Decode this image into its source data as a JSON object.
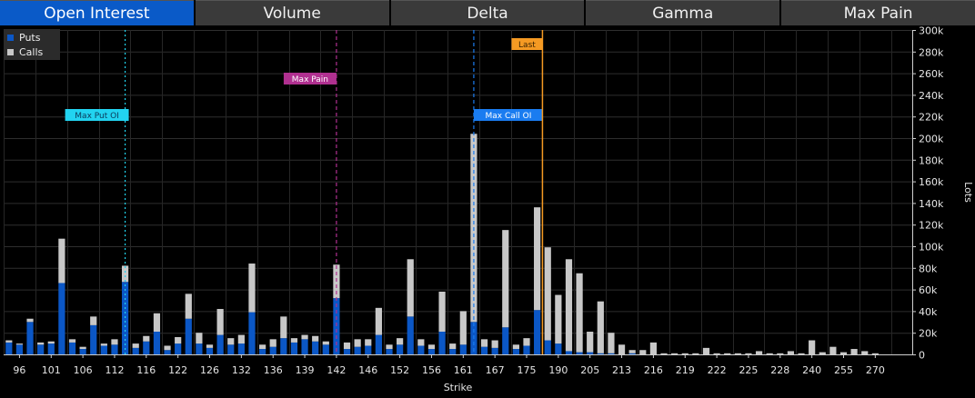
{
  "tabs": [
    {
      "label": "Open Interest",
      "active": true
    },
    {
      "label": "Volume",
      "active": false
    },
    {
      "label": "Delta",
      "active": false
    },
    {
      "label": "Gamma",
      "active": false
    },
    {
      "label": "Max Pain",
      "active": false
    }
  ],
  "legend": [
    {
      "label": "Puts",
      "color": "#0b57c6"
    },
    {
      "label": "Calls",
      "color": "#c8c8c8"
    }
  ],
  "chart_data": {
    "type": "bar",
    "stacked": true,
    "xlabel": "Strike",
    "ylabel": "Lots",
    "ylim": [
      0,
      300000
    ],
    "yticks": [
      "0",
      "20k",
      "40k",
      "60k",
      "80k",
      "100k",
      "120k",
      "140k",
      "160k",
      "180k",
      "200k",
      "220k",
      "240k",
      "260k",
      "280k",
      "300k"
    ],
    "xtick_labels": [
      "96",
      "101",
      "106",
      "112",
      "116",
      "122",
      "126",
      "132",
      "136",
      "139",
      "142",
      "146",
      "152",
      "156",
      "161",
      "167",
      "175",
      "190",
      "205",
      "213",
      "216",
      "219",
      "222",
      "225",
      "228",
      "240",
      "255",
      "270"
    ],
    "grid": true,
    "series": [
      {
        "name": "Puts",
        "color": "#0b57c6",
        "values": [
          11000,
          9000,
          30000,
          9000,
          10000,
          66000,
          11000,
          5000,
          27000,
          8000,
          9000,
          67000,
          6000,
          12000,
          21000,
          4000,
          10000,
          33000,
          10000,
          6000,
          18000,
          9000,
          10000,
          39000,
          5000,
          7000,
          15000,
          11000,
          14000,
          12000,
          9000,
          52000,
          5000,
          7000,
          8000,
          18000,
          5000,
          9000,
          35000,
          8000,
          5000,
          21000,
          5000,
          9000,
          30000,
          7000,
          6000,
          25000,
          5000,
          8000,
          41000,
          13000,
          10000,
          3000,
          2000,
          2000,
          1000,
          1000,
          0,
          1000,
          0,
          0,
          0,
          0,
          0,
          0,
          0,
          0,
          0,
          0,
          0,
          0,
          0,
          0,
          0,
          0,
          0,
          0,
          0,
          0,
          0,
          0,
          0,
          0,
          0,
          0
        ]
      },
      {
        "name": "Calls",
        "color": "#c8c8c8",
        "values": [
          2000,
          1000,
          3000,
          2000,
          2000,
          41000,
          3000,
          2000,
          8000,
          2000,
          5000,
          15000,
          4000,
          5000,
          17000,
          4000,
          6000,
          23000,
          10000,
          3000,
          24000,
          6000,
          8000,
          45000,
          4000,
          7000,
          20000,
          4000,
          4000,
          5000,
          3000,
          31000,
          6000,
          7000,
          6000,
          25000,
          4000,
          6000,
          53000,
          6000,
          4000,
          37000,
          5000,
          31000,
          174000,
          7000,
          7000,
          90000,
          4000,
          7000,
          95000,
          86000,
          45000,
          85000,
          73000,
          19000,
          48000,
          19000,
          9000,
          3000,
          4000,
          11000,
          1000,
          1000,
          1000,
          1000,
          6000,
          1000,
          1000,
          1000,
          1000,
          3000,
          1000,
          1000,
          3000,
          1000,
          13000,
          2000,
          7000,
          2000,
          5000,
          3000,
          1000,
          0,
          0,
          0
        ]
      }
    ],
    "markers": [
      {
        "label": "Max Put OI",
        "bar_index": 11,
        "color": "#22d3f0",
        "text_color": "#0b3a5a",
        "style": "dotted"
      },
      {
        "label": "Max Pain",
        "bar_index": 31,
        "color": "#b03090",
        "text_color": "#ffffff",
        "style": "dashed"
      },
      {
        "label": "Max Call OI",
        "bar_index": 44,
        "color": "#1a7cf0",
        "text_color": "#ffffff",
        "style": "dashed"
      },
      {
        "label": "Last",
        "bar_index": 50.5,
        "color": "#f59a23",
        "text_color": "#3a2200",
        "style": "solid"
      }
    ]
  }
}
